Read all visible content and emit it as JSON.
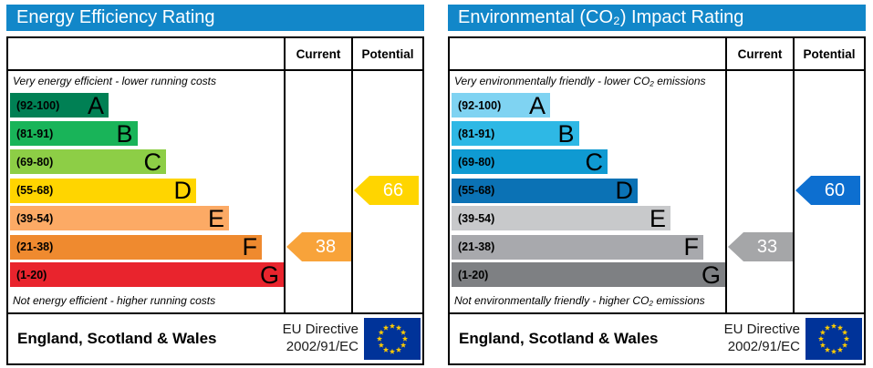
{
  "accent": {
    "title_bar_bg": "#1287c9",
    "title_text": "#ffffff",
    "border": "#000000",
    "eu_flag_bg": "#003399",
    "eu_star": "#ffcc00"
  },
  "chart_data": [
    {
      "type": "bar",
      "subtype": "epc-energy-efficiency-rating",
      "title": "Energy Efficiency Rating",
      "columns": [
        "Current",
        "Potential"
      ],
      "top_note": "Very energy efficient - lower running costs",
      "bottom_note": "Not energy efficient - higher running costs",
      "bands": [
        {
          "letter": "A",
          "label": "(92-100)",
          "range": [
            92,
            100
          ],
          "color": "#008054",
          "width_pct": 36
        },
        {
          "letter": "B",
          "label": "(81-91)",
          "range": [
            81,
            91
          ],
          "color": "#19b459",
          "width_pct": 46.5
        },
        {
          "letter": "C",
          "label": "(69-80)",
          "range": [
            69,
            80
          ],
          "color": "#8dce46",
          "width_pct": 57
        },
        {
          "letter": "D",
          "label": "(55-68)",
          "range": [
            55,
            68
          ],
          "color": "#ffd500",
          "width_pct": 68
        },
        {
          "letter": "E",
          "label": "(39-54)",
          "range": [
            39,
            54
          ],
          "color": "#fcaa65",
          "width_pct": 80
        },
        {
          "letter": "F",
          "label": "(21-38)",
          "range": [
            21,
            38
          ],
          "color": "#ef8a2f",
          "width_pct": 92
        },
        {
          "letter": "G",
          "label": "(1-20)",
          "range": [
            1,
            20
          ],
          "color": "#e9242d",
          "width_pct": 100
        }
      ],
      "current": {
        "value": 38,
        "band": "F",
        "arrow_color": "#f8a33a"
      },
      "potential": {
        "value": 66,
        "band": "D",
        "arrow_color": "#ffd500"
      },
      "footer": {
        "region": "England, Scotland & Wales",
        "directive_line1": "EU Directive",
        "directive_line2": "2002/91/EC"
      }
    },
    {
      "type": "bar",
      "subtype": "epc-environmental-co2-impact-rating",
      "title": "Environmental (CO₂) Impact Rating",
      "columns": [
        "Current",
        "Potential"
      ],
      "top_note": "Very environmentally friendly - lower CO₂ emissions",
      "bottom_note": "Not environmentally friendly - higher CO₂ emissions",
      "bands": [
        {
          "letter": "A",
          "label": "(92-100)",
          "range": [
            92,
            100
          ],
          "color": "#7fd3f2",
          "width_pct": 36
        },
        {
          "letter": "B",
          "label": "(81-91)",
          "range": [
            81,
            91
          ],
          "color": "#2eb8e5",
          "width_pct": 46.5
        },
        {
          "letter": "C",
          "label": "(69-80)",
          "range": [
            69,
            80
          ],
          "color": "#0f9ad2",
          "width_pct": 57
        },
        {
          "letter": "D",
          "label": "(55-68)",
          "range": [
            55,
            68
          ],
          "color": "#0b72b5",
          "width_pct": 68
        },
        {
          "letter": "E",
          "label": "(39-54)",
          "range": [
            39,
            54
          ],
          "color": "#c8c9cb",
          "width_pct": 80
        },
        {
          "letter": "F",
          "label": "(21-38)",
          "range": [
            21,
            38
          ],
          "color": "#a8a9ad",
          "width_pct": 92
        },
        {
          "letter": "G",
          "label": "(1-20)",
          "range": [
            1,
            20
          ],
          "color": "#7e8083",
          "width_pct": 100
        }
      ],
      "current": {
        "value": 33,
        "band": "F",
        "arrow_color": "#a5a6a8"
      },
      "potential": {
        "value": 60,
        "band": "D",
        "arrow_color": "#0d6fd0"
      },
      "footer": {
        "region": "England, Scotland & Wales",
        "directive_line1": "EU Directive",
        "directive_line2": "2002/91/EC"
      }
    }
  ]
}
